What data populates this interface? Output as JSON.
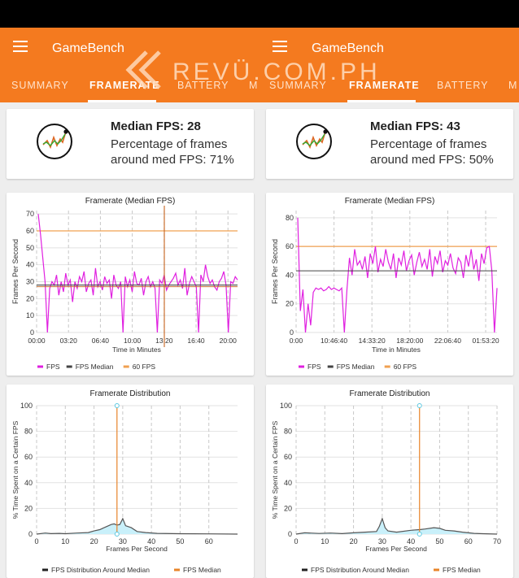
{
  "watermark": "REVÜ.COM.PH",
  "colors": {
    "accent": "#f47a1f",
    "fps": "#e020e0",
    "median": "#444444",
    "target": "#f0a050",
    "dist_fill": "#c9f0fa"
  },
  "panels": [
    {
      "app_title": "GameBench",
      "tabs": [
        "SUMMARY",
        "FRAMERATE",
        "BATTERY",
        "M"
      ],
      "active_tab": 1,
      "median_title": "Median FPS: 28",
      "median_desc": "Percentage of frames around med FPS: 71%",
      "chart_data": [
        {
          "type": "line",
          "title": "Framerate (Median FPS)",
          "xlabel": "Time in Minutes",
          "ylabel": "Frames Per Second",
          "x_ticks": [
            "00:00",
            "03:20",
            "06:40",
            "10:00",
            "13:20",
            "16:40",
            "20:00"
          ],
          "y_ticks": [
            0,
            10,
            20,
            30,
            40,
            50,
            60,
            70
          ],
          "ylim": [
            0,
            72
          ],
          "legend": [
            "FPS",
            "FPS Median",
            "60 FPS"
          ],
          "legend_position": "bottom",
          "median": 28,
          "target": 60,
          "series": [
            {
              "name": "FPS",
              "values": [
                70,
                58,
                44,
                30,
                0,
                26,
                30,
                28,
                34,
                22,
                30,
                24,
                35,
                28,
                31,
                18,
                30,
                26,
                33,
                30,
                36,
                24,
                29,
                31,
                22,
                38,
                27,
                30,
                25,
                33,
                29,
                31,
                20,
                34,
                28,
                26,
                30,
                0,
                33,
                27,
                31,
                24,
                36,
                29,
                28,
                32,
                22,
                30,
                33,
                27,
                30,
                26,
                0,
                31,
                29,
                34,
                25,
                28,
                30,
                32,
                35,
                28,
                31,
                26,
                38,
                22,
                29,
                33,
                30,
                27,
                0,
                34,
                30,
                40,
                33,
                29,
                31,
                27,
                25,
                30,
                32,
                36,
                28,
                0,
                30,
                29,
                33,
                31
              ]
            }
          ]
        },
        {
          "type": "area",
          "title": "Framerate Distribution",
          "xlabel": "Frames Per Second",
          "ylabel": "% Time Spent on a Certain FPS",
          "x_ticks": [
            0,
            10,
            20,
            30,
            40,
            50,
            60
          ],
          "y_ticks": [
            0,
            20,
            40,
            60,
            80,
            100
          ],
          "xlim": [
            0,
            70
          ],
          "ylim": [
            0,
            100
          ],
          "legend": [
            "FPS Distribution Around Median",
            "FPS Median"
          ],
          "legend_position": "bottom",
          "median": 28,
          "series": [
            {
              "name": "FPS Distribution Around Median",
              "x": [
                0,
                3,
                5,
                8,
                10,
                14,
                18,
                20,
                22,
                24,
                26,
                27,
                28,
                29,
                30,
                31,
                33,
                35,
                38,
                42,
                50,
                60,
                70
              ],
              "values": [
                0,
                0.8,
                0.4,
                0.6,
                0.3,
                0.8,
                1.2,
                2.5,
                3.5,
                5.5,
                7.5,
                8,
                7,
                7.5,
                12,
                6.5,
                5,
                2,
                1.2,
                0.6,
                0.3,
                0.2,
                0
              ]
            }
          ]
        }
      ]
    },
    {
      "app_title": "GameBench",
      "tabs": [
        "SUMMARY",
        "FRAMERATE",
        "BATTERY",
        "M"
      ],
      "active_tab": 1,
      "median_title": "Median FPS: 43",
      "median_desc": "Percentage of frames around med FPS: 50%",
      "chart_data": [
        {
          "type": "line",
          "title": "Framerate (Median FPS)",
          "xlabel": "Time in Minutes",
          "ylabel": "Frames Per Second",
          "x_ticks": [
            "0:00",
            "10:46:40",
            "14:33:20",
            "18:20:00",
            "22:06:40",
            "01:53:20"
          ],
          "y_ticks": [
            0,
            20,
            40,
            60,
            80
          ],
          "ylim": [
            0,
            85
          ],
          "legend": [
            "FPS",
            "FPS Median",
            "60 FPS"
          ],
          "legend_position": "bottom",
          "median": 43,
          "target": 60,
          "series": [
            {
              "name": "FPS",
              "values": [
                80,
                15,
                30,
                0,
                20,
                5,
                28,
                31,
                30,
                31,
                29,
                30,
                32,
                30,
                31,
                30,
                29,
                31,
                0,
                30,
                52,
                40,
                58,
                47,
                50,
                44,
                53,
                38,
                55,
                48,
                60,
                42,
                51,
                46,
                58,
                49,
                44,
                55,
                38,
                52,
                47,
                57,
                43,
                50,
                54,
                40,
                49,
                56,
                46,
                51,
                44,
                58,
                39,
                53,
                48,
                57,
                42,
                50,
                47,
                55,
                45,
                41,
                52,
                49,
                38,
                54,
                46,
                58,
                44,
                51,
                36,
                55,
                48,
                59,
                60,
                43,
                0,
                31
              ]
            }
          ]
        },
        {
          "type": "area",
          "title": "Framerate Distribution",
          "xlabel": "Frames Per Second",
          "ylabel": "% Time Spent on a Certain FPS",
          "x_ticks": [
            0,
            10,
            20,
            30,
            40,
            50,
            60,
            70
          ],
          "y_ticks": [
            0,
            20,
            40,
            60,
            80,
            100
          ],
          "xlim": [
            0,
            70
          ],
          "ylim": [
            0,
            100
          ],
          "legend": [
            "FPS Distribution Around Median",
            "FPS Median"
          ],
          "legend_position": "bottom",
          "median": 43,
          "series": [
            {
              "name": "FPS Distribution Around Median",
              "x": [
                0,
                3,
                8,
                12,
                16,
                20,
                24,
                28,
                29,
                30,
                31,
                32,
                35,
                40,
                43,
                45,
                48,
                50,
                52,
                55,
                58,
                60,
                62,
                65,
                70
              ],
              "values": [
                0,
                1,
                0.5,
                0.8,
                0.4,
                1,
                1.5,
                2,
                6,
                12,
                5,
                2.5,
                1.5,
                3,
                3.5,
                4,
                5,
                4.5,
                3,
                2.5,
                1.5,
                1,
                0.6,
                0.3,
                0
              ]
            }
          ]
        }
      ]
    }
  ]
}
